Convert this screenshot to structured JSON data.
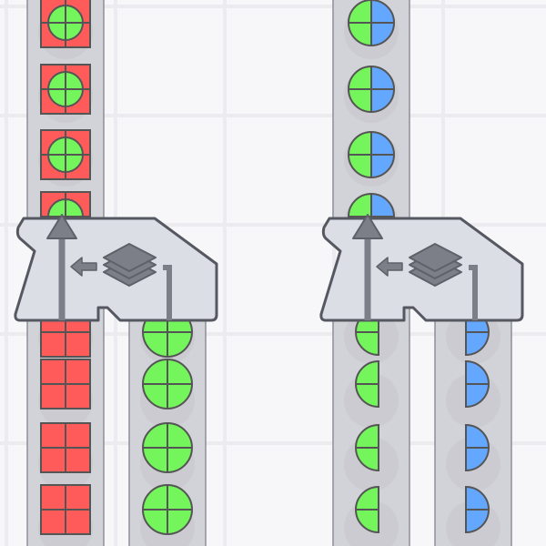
{
  "game": "factory-belts",
  "colors": {
    "background": "#f7f7f9",
    "grid": "#ececf0",
    "belt": "#d2d3d8",
    "belt_edge": "#8e9098",
    "machine_fill": "#dcdee6",
    "machine_stroke": "#555860",
    "icon": "#7d7f88",
    "red": "#ff5b5b",
    "green": "#74f55b",
    "blue": "#63a7ff",
    "shape_stroke": "#555555"
  },
  "machines": [
    {
      "type": "unstacker",
      "icon": "layers-icon",
      "input_belt": {
        "item": "green-circle-on-red-square",
        "count": 4
      },
      "output_left": {
        "item": "red-square",
        "count": 4
      },
      "output_right": {
        "item": "green-circle",
        "count": 4
      }
    },
    {
      "type": "unstacker",
      "icon": "layers-icon",
      "input_belt": {
        "item": "green-blue-split-circle",
        "count": 4
      },
      "output_left": {
        "item": "green-left-half-circle",
        "count": 4
      },
      "output_right": {
        "item": "blue-right-half-circle",
        "count": 4
      }
    }
  ]
}
